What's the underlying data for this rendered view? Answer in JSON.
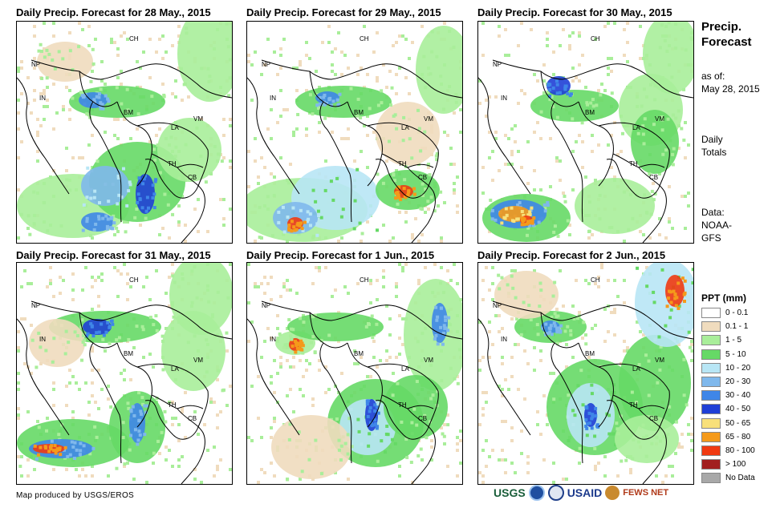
{
  "panels": [
    {
      "title": "Daily Precip. Forecast for 28 May., 2015"
    },
    {
      "title": "Daily Precip. Forecast for 29 May., 2015"
    },
    {
      "title": "Daily Precip. Forecast for 30 May., 2015"
    },
    {
      "title": "Daily Precip. Forecast for 31 May., 2015"
    },
    {
      "title": "Daily Precip. Forecast for 1 Jun., 2015"
    },
    {
      "title": "Daily Precip. Forecast for 2 Jun., 2015"
    }
  ],
  "country_labels": [
    "CH",
    "NP",
    "IN",
    "BM",
    "LA",
    "VM",
    "TH",
    "CB"
  ],
  "sidebar": {
    "title_line1": "Precip.",
    "title_line2": "Forecast",
    "asof_label": "as of:",
    "asof_date": "May 28, 2015",
    "totals_line1": "Daily",
    "totals_line2": "Totals",
    "data_line1": "Data:",
    "data_line2": "NOAA-",
    "data_line3": "GFS"
  },
  "legend": {
    "title": "PPT (mm)",
    "items": [
      {
        "label": "0 - 0.1",
        "color": "#ffffff"
      },
      {
        "label": "0.1 - 1",
        "color": "#f0dcbe"
      },
      {
        "label": "1 - 5",
        "color": "#a9ee9a"
      },
      {
        "label": "5 - 10",
        "color": "#66d966"
      },
      {
        "label": "10 - 20",
        "color": "#b8e6f5"
      },
      {
        "label": "20 - 30",
        "color": "#7fb8ec"
      },
      {
        "label": "30 - 40",
        "color": "#3f86e8"
      },
      {
        "label": "40 - 50",
        "color": "#1f3fd6"
      },
      {
        "label": "50 - 65",
        "color": "#f8e07a"
      },
      {
        "label": "65 - 80",
        "color": "#f59a1a"
      },
      {
        "label": "80 - 100",
        "color": "#f03a12"
      },
      {
        "label": "> 100",
        "color": "#a21f1f"
      },
      {
        "label": "No Data",
        "color": "#a8a8a8"
      }
    ]
  },
  "footer": {
    "credit": "Map produced by USGS/EROS"
  },
  "logos": {
    "usgs": "USGS",
    "usaid": "USAID",
    "fewsnet": "FEWS NET"
  }
}
